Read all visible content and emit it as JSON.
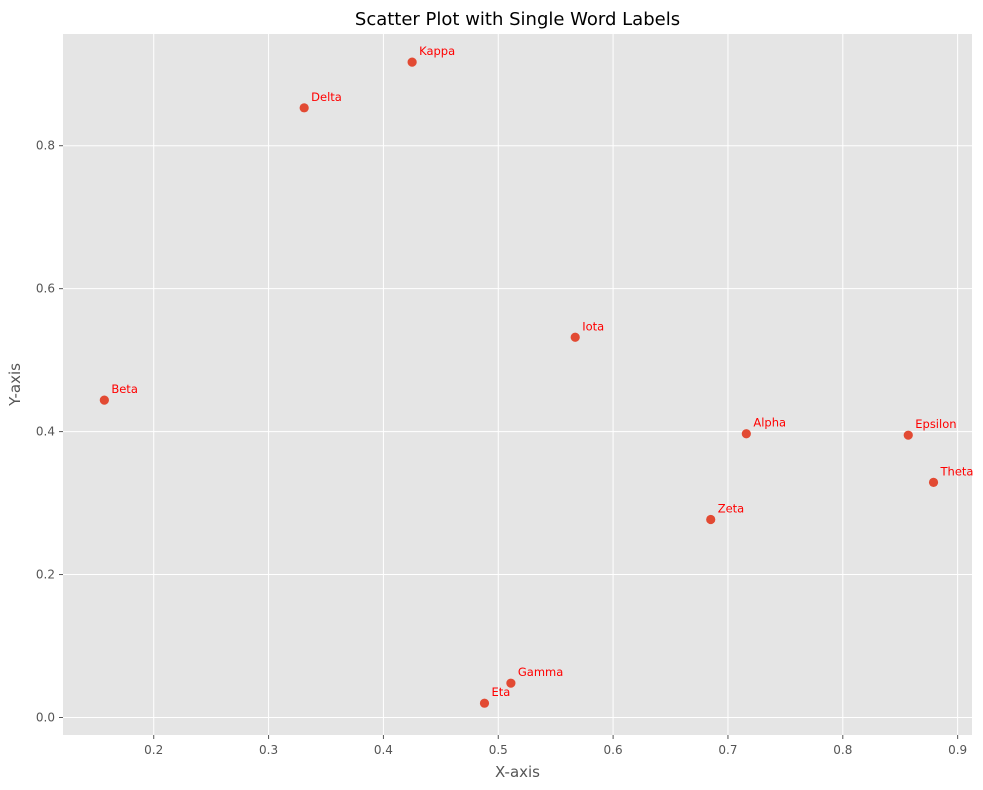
{
  "chart_data": {
    "type": "scatter",
    "title": "Scatter Plot with Single Word Labels",
    "xlabel": "X-axis",
    "ylabel": "Y-axis",
    "xlim": [
      0.121,
      0.9125
    ],
    "ylim": [
      -0.0245,
      0.9563
    ],
    "xticks": [
      0.2,
      0.3,
      0.4,
      0.5,
      0.6,
      0.7,
      0.8,
      0.9
    ],
    "yticks": [
      0.0,
      0.2,
      0.4,
      0.6,
      0.8
    ],
    "xtick_labels": [
      "0.2",
      "0.3",
      "0.4",
      "0.5",
      "0.6",
      "0.7",
      "0.8",
      "0.9"
    ],
    "ytick_labels": [
      "0.0",
      "0.2",
      "0.4",
      "0.6",
      "0.8"
    ],
    "grid": true,
    "style": "ggplot",
    "point_color": "#E24A33",
    "label_color": "#FF0000",
    "background_color": "#E5E5E5",
    "points": [
      {
        "label": "Alpha",
        "x": 0.716,
        "y": 0.397
      },
      {
        "label": "Beta",
        "x": 0.157,
        "y": 0.444
      },
      {
        "label": "Gamma",
        "x": 0.511,
        "y": 0.048
      },
      {
        "label": "Delta",
        "x": 0.331,
        "y": 0.853
      },
      {
        "label": "Epsilon",
        "x": 0.857,
        "y": 0.395
      },
      {
        "label": "Zeta",
        "x": 0.685,
        "y": 0.277
      },
      {
        "label": "Eta",
        "x": 0.488,
        "y": 0.02
      },
      {
        "label": "Theta",
        "x": 0.879,
        "y": 0.329
      },
      {
        "label": "Iota",
        "x": 0.567,
        "y": 0.532
      },
      {
        "label": "Kappa",
        "x": 0.425,
        "y": 0.917
      }
    ]
  }
}
